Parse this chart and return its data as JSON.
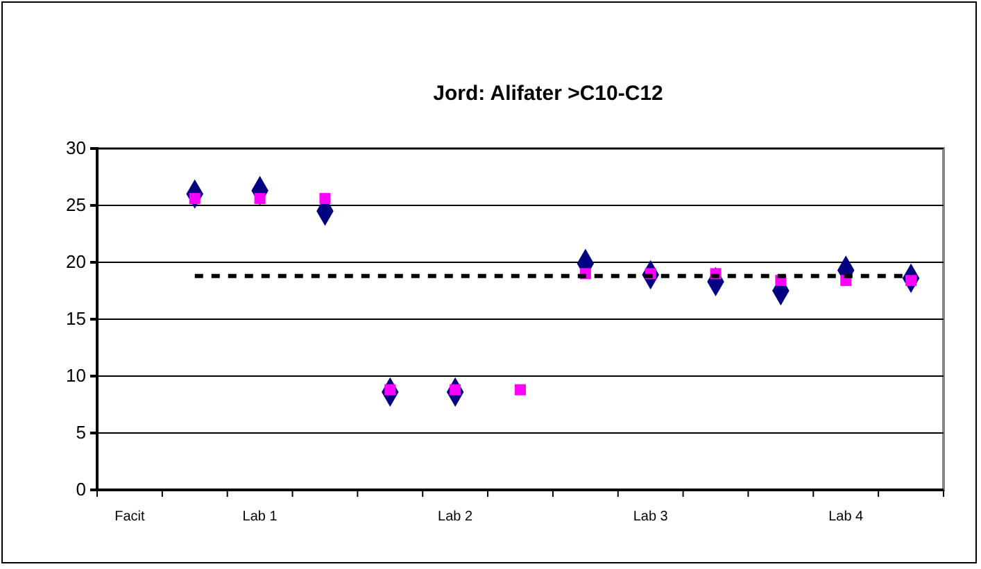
{
  "chart_data": {
    "type": "scatter",
    "title": "Jord: Alifater >C10-C12",
    "categories": [
      "Facit",
      null,
      "Lab 1",
      null,
      null,
      "Lab 2",
      null,
      null,
      "Lab 3",
      null,
      null,
      "Lab 4",
      null
    ],
    "ylim": [
      0,
      30
    ],
    "yticks": [
      0,
      5,
      10,
      15,
      20,
      25,
      30
    ],
    "grid": "y",
    "series": [
      {
        "color": "#000080",
        "marker": "diamond",
        "values": [
          null,
          26.0,
          26.3,
          24.5,
          8.6,
          8.6,
          null,
          19.9,
          18.9,
          18.3,
          17.5,
          19.3,
          18.6
        ]
      },
      {
        "color": "#ff00ff",
        "marker": "square",
        "values": [
          null,
          25.6,
          25.6,
          25.6,
          8.8,
          8.8,
          8.8,
          19.0,
          19.0,
          19.0,
          18.4,
          18.4,
          18.4
        ]
      },
      {
        "type": "line",
        "color": "#000000",
        "marker": "none",
        "line_style": "dashed",
        "values": [
          null,
          18.8,
          18.8,
          18.8,
          18.8,
          18.8,
          18.8,
          18.8,
          18.8,
          18.8,
          18.8,
          18.8,
          18.8
        ]
      }
    ]
  }
}
